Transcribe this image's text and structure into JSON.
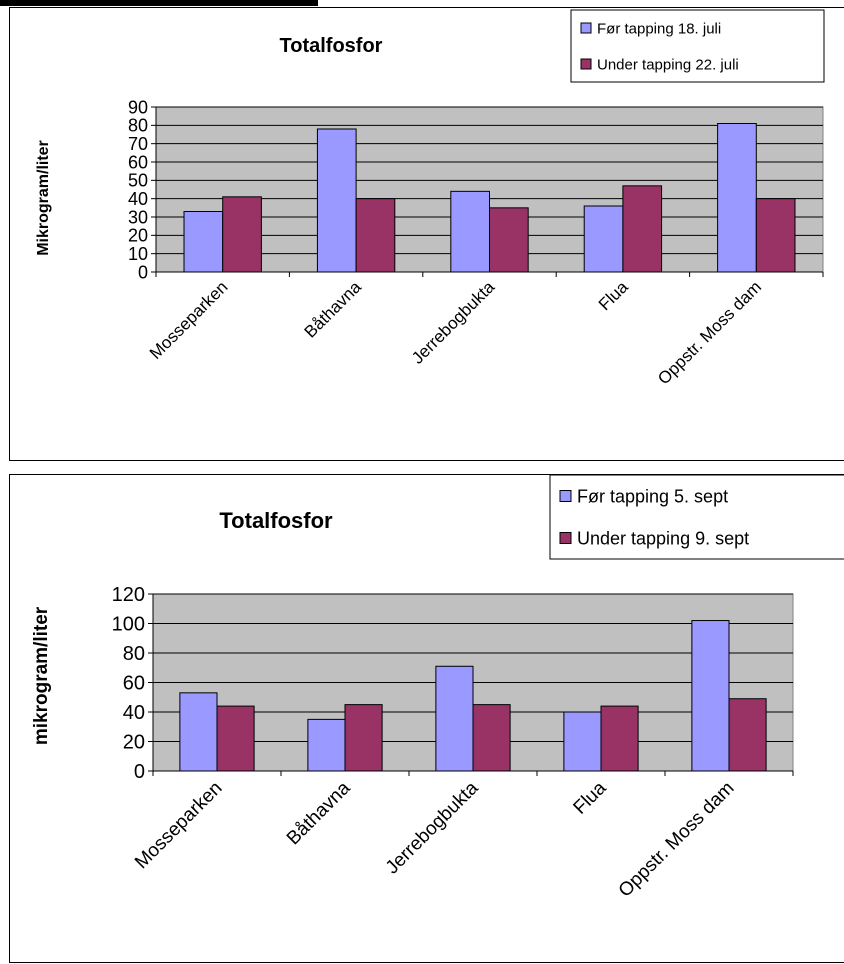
{
  "chart_data": [
    {
      "type": "bar",
      "title": "Totalfosfor",
      "ylabel": "Mikrogram/liter",
      "xlabel": "",
      "categories": [
        "Mosseparken",
        "Båthavna",
        "Jerrebogbukta",
        "Flua",
        "Oppstr. Moss dam"
      ],
      "series": [
        {
          "name": "Før tapping 18. juli",
          "color": "#9999ff",
          "values": [
            33,
            78,
            44,
            36,
            81
          ]
        },
        {
          "name": "Under tapping 22. juli",
          "color": "#993366",
          "values": [
            41,
            40,
            35,
            47,
            40
          ]
        }
      ],
      "ylim": [
        0,
        90
      ],
      "yticks": [
        "0",
        "10",
        "20",
        "30",
        "40",
        "50",
        "60",
        "70",
        "80",
        "90"
      ],
      "grid": true,
      "plot_background": "#c0c0c0",
      "legend_position": "top-right"
    },
    {
      "type": "bar",
      "title": "Totalfosfor",
      "ylabel": "mikrogram/liter",
      "xlabel": "",
      "categories": [
        "Mosseparken",
        "Båthavna",
        "Jerrebogbukta",
        "Flua",
        "Oppstr. Moss dam"
      ],
      "series": [
        {
          "name": "Før tapping 5. sept",
          "color": "#9999ff",
          "values": [
            53,
            35,
            71,
            40,
            102
          ]
        },
        {
          "name": "Under tapping 9. sept",
          "color": "#993366",
          "values": [
            44,
            45,
            45,
            44,
            49
          ]
        }
      ],
      "ylim": [
        0,
        120
      ],
      "yticks": [
        "0",
        "20",
        "40",
        "60",
        "80",
        "100",
        "120"
      ],
      "grid": true,
      "plot_background": "#c0c0c0",
      "legend_position": "top-right"
    }
  ]
}
